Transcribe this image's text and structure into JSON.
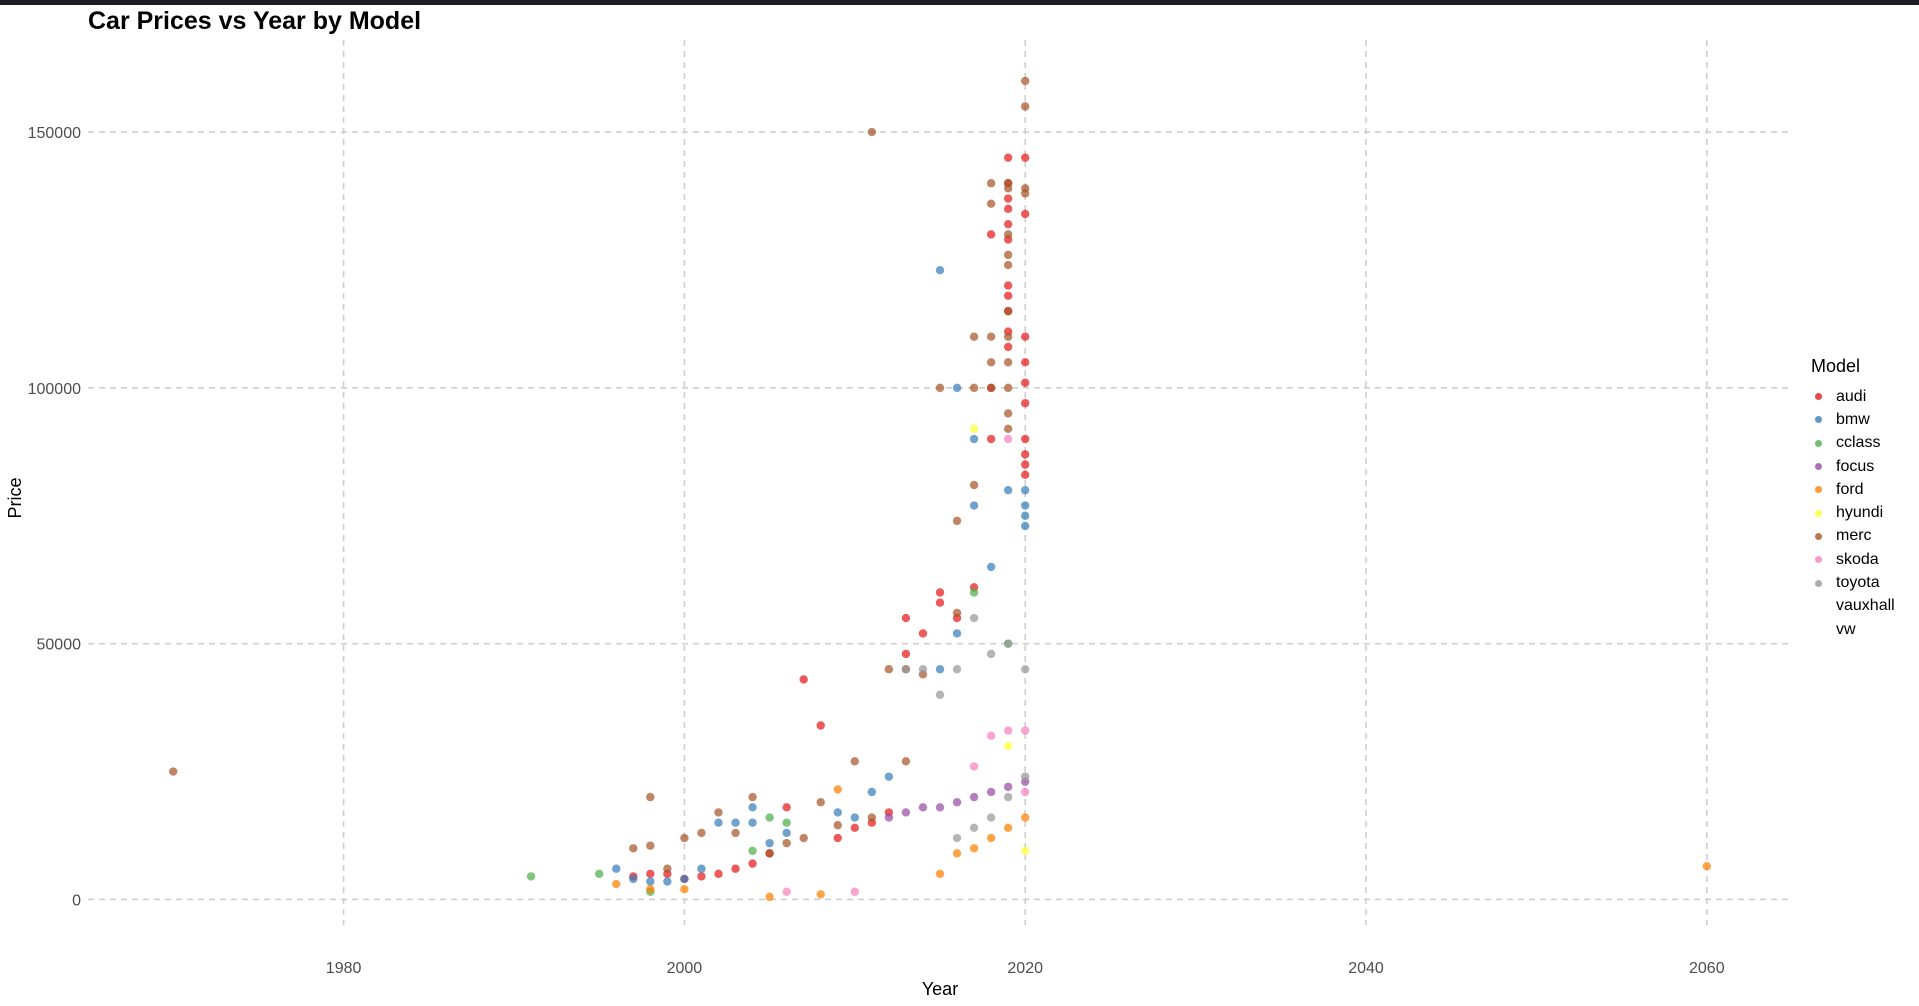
{
  "chart_data": {
    "type": "scatter",
    "title": "Car Prices vs Year by Model",
    "xlabel": "Year",
    "ylabel": "Price",
    "xlim": [
      1965,
      2065
    ],
    "ylim": [
      -5000,
      168000
    ],
    "x_ticks": [
      1980,
      2000,
      2020,
      2040,
      2060
    ],
    "y_ticks": [
      0,
      50000,
      100000,
      150000
    ],
    "grid": true,
    "grid_style": "dashed",
    "legend_title": "Model",
    "legend_position": "right",
    "series": [
      {
        "name": "audi",
        "color": "#E41A1C",
        "points": [
          [
            2007,
            43000
          ],
          [
            2008,
            34000
          ],
          [
            2015,
            60000
          ],
          [
            2015,
            58000
          ],
          [
            2013,
            55000
          ],
          [
            2013,
            48000
          ],
          [
            2014,
            52000
          ],
          [
            2016,
            55000
          ],
          [
            2017,
            61000
          ],
          [
            2019,
            145000
          ],
          [
            2019,
            140000
          ],
          [
            2019,
            137000
          ],
          [
            2019,
            135000
          ],
          [
            2019,
            132000
          ],
          [
            2019,
            129000
          ],
          [
            2019,
            120000
          ],
          [
            2019,
            118000
          ],
          [
            2019,
            115000
          ],
          [
            2019,
            111000
          ],
          [
            2019,
            108000
          ],
          [
            2020,
            145000
          ],
          [
            2020,
            134000
          ],
          [
            2020,
            110000
          ],
          [
            2020,
            105000
          ],
          [
            2020,
            101000
          ],
          [
            2020,
            97000
          ],
          [
            2020,
            90000
          ],
          [
            2020,
            87000
          ],
          [
            2020,
            85000
          ],
          [
            2020,
            83000
          ],
          [
            2018,
            130000
          ],
          [
            2018,
            100000
          ],
          [
            2018,
            90000
          ],
          [
            2006,
            18000
          ],
          [
            2005,
            9000
          ],
          [
            2004,
            7000
          ],
          [
            2003,
            6000
          ],
          [
            2002,
            5000
          ],
          [
            2001,
            4500
          ],
          [
            2000,
            4000
          ],
          [
            1999,
            5000
          ],
          [
            1998,
            5000
          ],
          [
            1997,
            4500
          ],
          [
            2009,
            12000
          ],
          [
            2010,
            14000
          ],
          [
            2011,
            15000
          ],
          [
            2012,
            17000
          ]
        ]
      },
      {
        "name": "bmw",
        "color": "#377EB8",
        "points": [
          [
            2015,
            123000
          ],
          [
            2016,
            100000
          ],
          [
            2017,
            90000
          ],
          [
            2017,
            77000
          ],
          [
            1996,
            6000
          ],
          [
            1997,
            4000
          ],
          [
            1998,
            3500
          ],
          [
            1999,
            3500
          ],
          [
            2000,
            4000
          ],
          [
            2001,
            6000
          ],
          [
            2002,
            15000
          ],
          [
            2003,
            15000
          ],
          [
            2004,
            18000
          ],
          [
            2004,
            15000
          ],
          [
            2005,
            11000
          ],
          [
            2006,
            13000
          ],
          [
            2009,
            17000
          ],
          [
            2010,
            16000
          ],
          [
            2011,
            21000
          ],
          [
            2012,
            24000
          ],
          [
            2015,
            45000
          ],
          [
            2016,
            52000
          ],
          [
            2018,
            65000
          ],
          [
            2019,
            80000
          ],
          [
            2020,
            80000
          ],
          [
            2020,
            77000
          ],
          [
            2020,
            75000
          ],
          [
            2020,
            73000
          ]
        ]
      },
      {
        "name": "cclass",
        "color": "#4DAF4A",
        "points": [
          [
            1991,
            4500
          ],
          [
            1995,
            5000
          ],
          [
            1998,
            1500
          ],
          [
            2004,
            9500
          ],
          [
            2005,
            16000
          ],
          [
            2006,
            15000
          ],
          [
            2017,
            60000
          ],
          [
            2019,
            50000
          ]
        ]
      },
      {
        "name": "focus",
        "color": "#984EA3",
        "points": [
          [
            2012,
            16000
          ],
          [
            2013,
            17000
          ],
          [
            2014,
            18000
          ],
          [
            2015,
            18000
          ],
          [
            2016,
            19000
          ],
          [
            2017,
            20000
          ],
          [
            2018,
            21000
          ],
          [
            2019,
            22000
          ],
          [
            2020,
            23000
          ]
        ]
      },
      {
        "name": "ford",
        "color": "#FF7F00",
        "points": [
          [
            2060,
            6500
          ],
          [
            1996,
            3000
          ],
          [
            1998,
            2000
          ],
          [
            2000,
            2000
          ],
          [
            2005,
            500
          ],
          [
            2008,
            1000
          ],
          [
            2009,
            21500
          ],
          [
            2015,
            5000
          ],
          [
            2016,
            9000
          ],
          [
            2017,
            10000
          ],
          [
            2018,
            12000
          ],
          [
            2019,
            14000
          ],
          [
            2020,
            16000
          ]
        ]
      },
      {
        "name": "hyundi",
        "color": "#FFFF33",
        "points": [
          [
            2017,
            92000
          ],
          [
            2019,
            30000
          ],
          [
            2020,
            9500
          ]
        ]
      },
      {
        "name": "merc",
        "color": "#A65628",
        "points": [
          [
            1970,
            25000
          ],
          [
            1997,
            10000
          ],
          [
            1998,
            20000
          ],
          [
            1998,
            10500
          ],
          [
            1999,
            6000
          ],
          [
            2000,
            12000
          ],
          [
            2001,
            13000
          ],
          [
            2002,
            17000
          ],
          [
            2003,
            13000
          ],
          [
            2004,
            20000
          ],
          [
            2005,
            9000
          ],
          [
            2006,
            11000
          ],
          [
            2007,
            12000
          ],
          [
            2008,
            19000
          ],
          [
            2009,
            14500
          ],
          [
            2010,
            27000
          ],
          [
            2011,
            150000
          ],
          [
            2011,
            16000
          ],
          [
            2012,
            45000
          ],
          [
            2013,
            45000
          ],
          [
            2013,
            27000
          ],
          [
            2014,
            44000
          ],
          [
            2015,
            100000
          ],
          [
            2016,
            56000
          ],
          [
            2016,
            74000
          ],
          [
            2017,
            110000
          ],
          [
            2017,
            100000
          ],
          [
            2017,
            81000
          ],
          [
            2018,
            140000
          ],
          [
            2018,
            136000
          ],
          [
            2018,
            110000
          ],
          [
            2018,
            105000
          ],
          [
            2018,
            100000
          ],
          [
            2019,
            140000
          ],
          [
            2019,
            139000
          ],
          [
            2019,
            130000
          ],
          [
            2019,
            126000
          ],
          [
            2019,
            124000
          ],
          [
            2019,
            115000
          ],
          [
            2019,
            110000
          ],
          [
            2019,
            105000
          ],
          [
            2019,
            100000
          ],
          [
            2019,
            95000
          ],
          [
            2019,
            92000
          ],
          [
            2020,
            160000
          ],
          [
            2020,
            155000
          ],
          [
            2020,
            139000
          ],
          [
            2020,
            138000
          ]
        ]
      },
      {
        "name": "skoda",
        "color": "#F781BF",
        "points": [
          [
            2006,
            1500
          ],
          [
            2010,
            1500
          ],
          [
            2017,
            26000
          ],
          [
            2018,
            32000
          ],
          [
            2019,
            90000
          ],
          [
            2019,
            33000
          ],
          [
            2020,
            33000
          ],
          [
            2020,
            21000
          ]
        ]
      },
      {
        "name": "toyota",
        "color": "#999999",
        "points": [
          [
            2013,
            45000
          ],
          [
            2014,
            45000
          ],
          [
            2015,
            40000
          ],
          [
            2016,
            45000
          ],
          [
            2017,
            55000
          ],
          [
            2018,
            48000
          ],
          [
            2019,
            50000
          ],
          [
            2020,
            45000
          ],
          [
            2016,
            12000
          ],
          [
            2017,
            14000
          ],
          [
            2018,
            16000
          ],
          [
            2019,
            20000
          ],
          [
            2020,
            24000
          ]
        ]
      },
      {
        "name": "vauxhall",
        "color": "",
        "points": []
      },
      {
        "name": "vw",
        "color": "",
        "points": []
      }
    ]
  }
}
